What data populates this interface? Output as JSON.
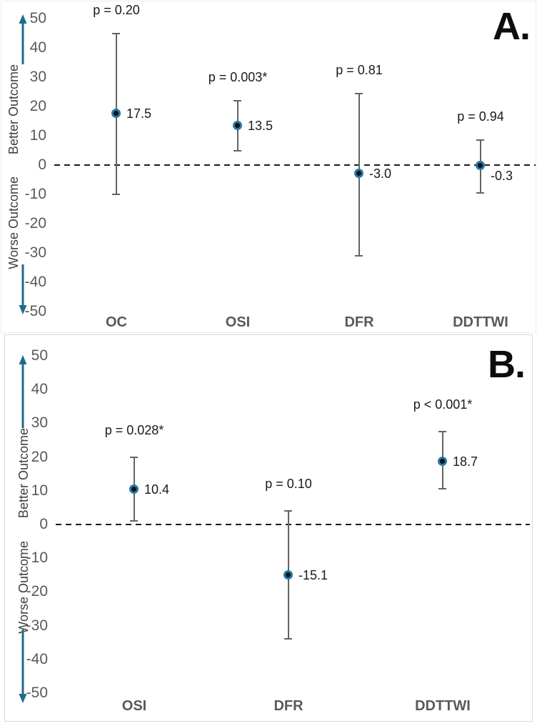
{
  "chart_data": [
    {
      "type": "scatter",
      "panel_label": "A.",
      "axis_label_top": "Better Outcome",
      "axis_label_bottom": "Worse Outcome",
      "ylim": [
        -50,
        50
      ],
      "yticks": [
        50,
        40,
        30,
        20,
        10,
        0,
        -10,
        -20,
        -30,
        -40,
        -50
      ],
      "zero_line": true,
      "grid": false,
      "points": [
        {
          "category": "OC",
          "value": 17.5,
          "value_label": "17.5",
          "ci_low": -10,
          "ci_high": 45,
          "p_label": "p = 0.20"
        },
        {
          "category": "OSI",
          "value": 13.5,
          "value_label": "13.5",
          "ci_low": 5,
          "ci_high": 22,
          "p_label": "p = 0.003*"
        },
        {
          "category": "DFR",
          "value": -3.0,
          "value_label": "-3.0",
          "ci_low": -31,
          "ci_high": 24.5,
          "p_label": "p = 0.81"
        },
        {
          "category": "DDTTWI",
          "value": -0.3,
          "value_label": "-0.3",
          "ci_low": -9.5,
          "ci_high": 8.5,
          "p_label": "p = 0.94"
        }
      ]
    },
    {
      "type": "scatter",
      "panel_label": "B.",
      "axis_label_top": "Better Outcome",
      "axis_label_bottom": "Worse Outcome",
      "ylim": [
        -50,
        50
      ],
      "yticks": [
        50,
        40,
        30,
        20,
        10,
        0,
        -10,
        -20,
        -30,
        -40,
        -50
      ],
      "zero_line": true,
      "grid": false,
      "points": [
        {
          "category": "OSI",
          "value": 10.4,
          "value_label": "10.4",
          "ci_low": 1,
          "ci_high": 20,
          "p_label": "p = 0.028*"
        },
        {
          "category": "DFR",
          "value": -15.1,
          "value_label": "-15.1",
          "ci_low": -34,
          "ci_high": 4,
          "p_label": "p = 0.10"
        },
        {
          "category": "DDTTWI",
          "value": 18.7,
          "value_label": "18.7",
          "ci_low": 10.5,
          "ci_high": 27.5,
          "p_label": "p < 0.001*"
        }
      ]
    }
  ],
  "colors": {
    "accent": "#1E6A8C",
    "marker_ring": "#2679A2",
    "marker_fill": "#0A1118",
    "error_bar": "#636363",
    "tick_text": "#595959",
    "category_text": "#595959",
    "label_text": "#1A1A1A",
    "axis_text": "#404040",
    "panel_border": "#D9D9D9",
    "zero_line": "#1A1A1A"
  }
}
